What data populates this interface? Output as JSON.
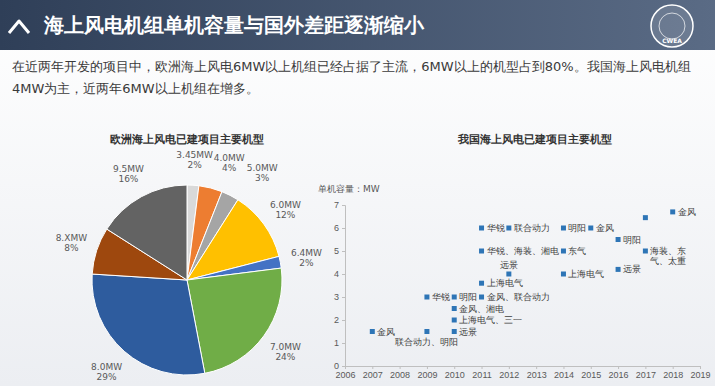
{
  "header": {
    "title": "海上风电机组单机容量与国外差距逐渐缩小",
    "text": "在近两年开发的项目中，欧洲海上风电6MW以上机组已经占据了主流，6MW以上的机型占到80%。我国海上风电机组4MW为主，近两年6MW以上机组在增多。",
    "logo": "CWEA"
  },
  "chart_data": [
    {
      "type": "pie",
      "title": "欧洲海上风电已建项目主要机型",
      "categories": [
        "3.45MW",
        "4.0MW",
        "5.0MW",
        "6.0MW",
        "6.4MW",
        "7.0MW",
        "8.0MW",
        "8.XMW",
        "9.5MW"
      ],
      "values": [
        2,
        4,
        3,
        12,
        2,
        24,
        29,
        8,
        16
      ],
      "value_labels": [
        "2%",
        "4%",
        "3%",
        "12%",
        "2%",
        "24%",
        "29%",
        "8%",
        "16%"
      ],
      "colors": [
        "#D9D9D9",
        "#ED7D31",
        "#A5A5A5",
        "#FFC000",
        "#4472C4",
        "#70AD47",
        "#2E5C9E",
        "#9E480E",
        "#636363"
      ],
      "data_labels": true
    },
    {
      "type": "scatter",
      "title": "我国海上风电已建项目主要机型",
      "ylabel": "单机容量：MW",
      "x": [
        2007,
        2009,
        2009,
        2010,
        2010,
        2010,
        2010,
        2011,
        2011,
        2011,
        2014,
        2011,
        2012,
        2014,
        2015,
        2012,
        2014,
        2016,
        2016,
        2017,
        2017,
        2018
      ],
      "values": [
        1.5,
        1.5,
        3.0,
        3.0,
        2.5,
        2.0,
        1.5,
        3.6,
        3.0,
        5.0,
        5.0,
        6.0,
        6.0,
        6.0,
        6.0,
        4.0,
        4.0,
        4.2,
        5.5,
        5.0,
        6.45,
        6.7
      ],
      "labels": [
        "金风",
        "联合动力、明阳",
        "华锐",
        "明阳",
        "金风、湘电",
        "上海电气、三一",
        "远景",
        "上海电气",
        "金风、联合动力",
        "华锐、海装、湘电",
        "东气",
        "华锐",
        "联合动力",
        "明阳",
        "金风",
        "远景",
        "上海电气",
        "远景",
        "明阳",
        "海装、东气、太重",
        null,
        "金风"
      ],
      "color": "#2E75B6",
      "marker": "square",
      "xlim": [
        2006,
        2019
      ],
      "ylim": [
        0,
        7
      ],
      "xticks": [
        2006,
        2007,
        2008,
        2009,
        2010,
        2011,
        2012,
        2013,
        2014,
        2015,
        2016,
        2017,
        2018,
        2019
      ],
      "yticks": [
        0,
        1,
        2,
        3,
        4,
        5,
        6,
        7
      ],
      "grid": false
    }
  ]
}
